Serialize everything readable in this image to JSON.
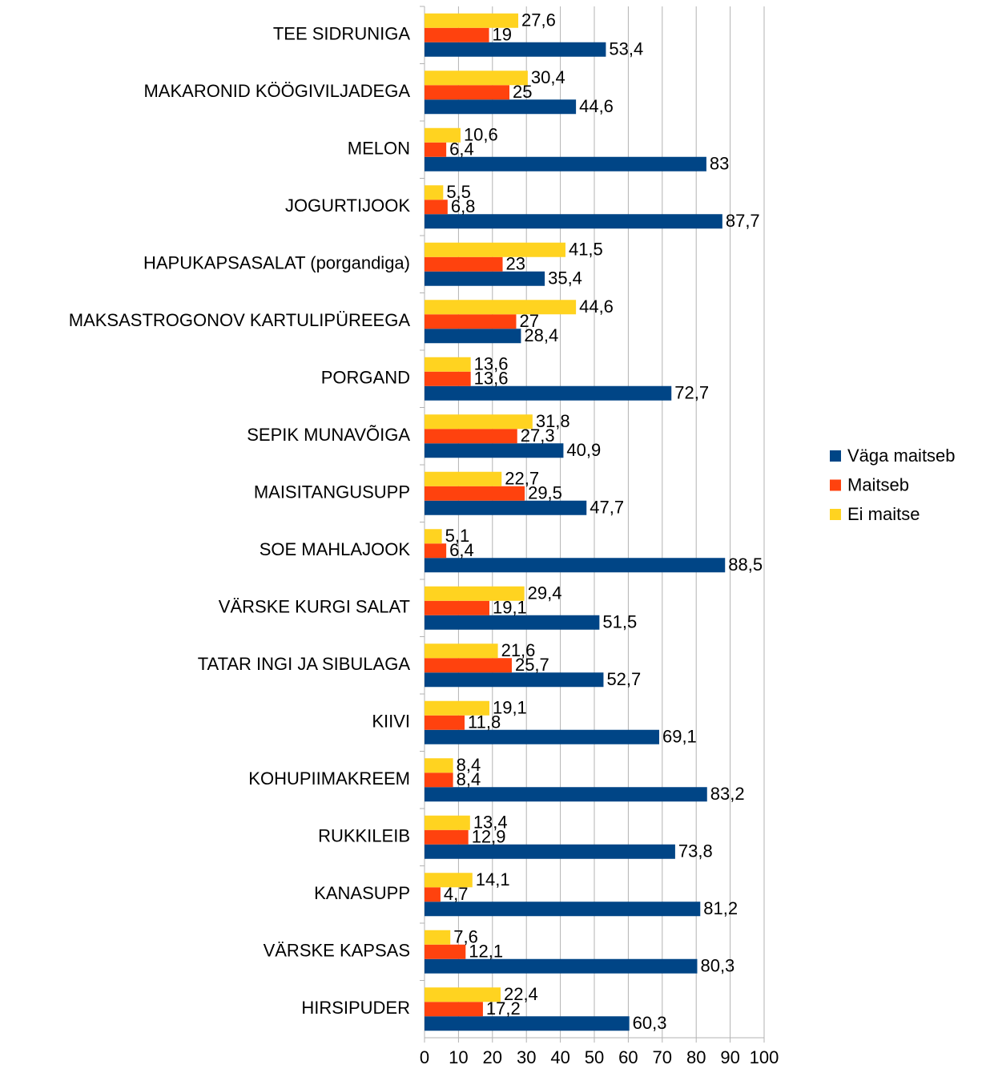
{
  "chart_data": {
    "type": "bar",
    "orientation": "horizontal",
    "categories": [
      "TEE SIDRUNIGA",
      "MAKARONID KÖÖGIVILJADEGA",
      "MELON",
      "JOGURTIJOOK",
      "HAPUKAPSASALAT (porgandiga)",
      "MAKSASTROGONOV KARTULIPÜREEGA",
      "PORGAND",
      "SEPIK MUNAVÕIGA",
      "MAISITANGUSUPP",
      "SOE MAHLAJOOK",
      "VÄRSKE KURGI SALAT",
      "TATAR INGI JA SIBULAGA",
      "KIIVI",
      "KOHUPIIMAKREEM",
      "RUKKILEIB",
      "KANASUPP",
      "VÄRSKE KAPSAS",
      "HIRSIPUDER"
    ],
    "series": [
      {
        "name": "Väga maitseb",
        "color": "#004586",
        "values": [
          53.4,
          44.6,
          83,
          87.7,
          35.4,
          28.4,
          72.7,
          40.9,
          47.7,
          88.5,
          51.5,
          52.7,
          69.1,
          83.2,
          73.8,
          81.2,
          80.3,
          60.3
        ],
        "value_labels": [
          "53,4",
          "44,6",
          "83",
          "87,7",
          "35,4",
          "28,4",
          "72,7",
          "40,9",
          "47,7",
          "88,5",
          "51,5",
          "52,7",
          "69,1",
          "83,2",
          "73,8",
          "81,2",
          "80,3",
          "60,3"
        ]
      },
      {
        "name": "Maitseb",
        "color": "#ff420e",
        "values": [
          19,
          25,
          6.4,
          6.8,
          23,
          27,
          13.6,
          27.3,
          29.5,
          6.4,
          19.1,
          25.7,
          11.8,
          8.4,
          12.9,
          4.7,
          12.1,
          17.2
        ],
        "value_labels": [
          "19",
          "25",
          "6,4",
          "6,8",
          "23",
          "27",
          "13,6",
          "27,3",
          "29,5",
          "6,4",
          "19,1",
          "25,7",
          "11,8",
          "8,4",
          "12,9",
          "4,7",
          "12,1",
          "17,2"
        ]
      },
      {
        "name": "Ei maitse",
        "color": "#ffd320",
        "values": [
          27.6,
          30.4,
          10.6,
          5.5,
          41.5,
          44.6,
          13.6,
          31.8,
          22.7,
          5.1,
          29.4,
          21.6,
          19.1,
          8.4,
          13.4,
          14.1,
          7.6,
          22.4
        ],
        "value_labels": [
          "27,6",
          "30,4",
          "10,6",
          "5,5",
          "41,5",
          "44,6",
          "13,6",
          "31,8",
          "22,7",
          "5,1",
          "29,4",
          "21,6",
          "19,1",
          "8,4",
          "13,4",
          "14,1",
          "7,6",
          "22,4"
        ]
      }
    ],
    "xlim": [
      0,
      100
    ],
    "xticks": [
      0,
      10,
      20,
      30,
      40,
      50,
      60,
      70,
      80,
      90,
      100
    ],
    "grid": true,
    "legend": "right"
  }
}
